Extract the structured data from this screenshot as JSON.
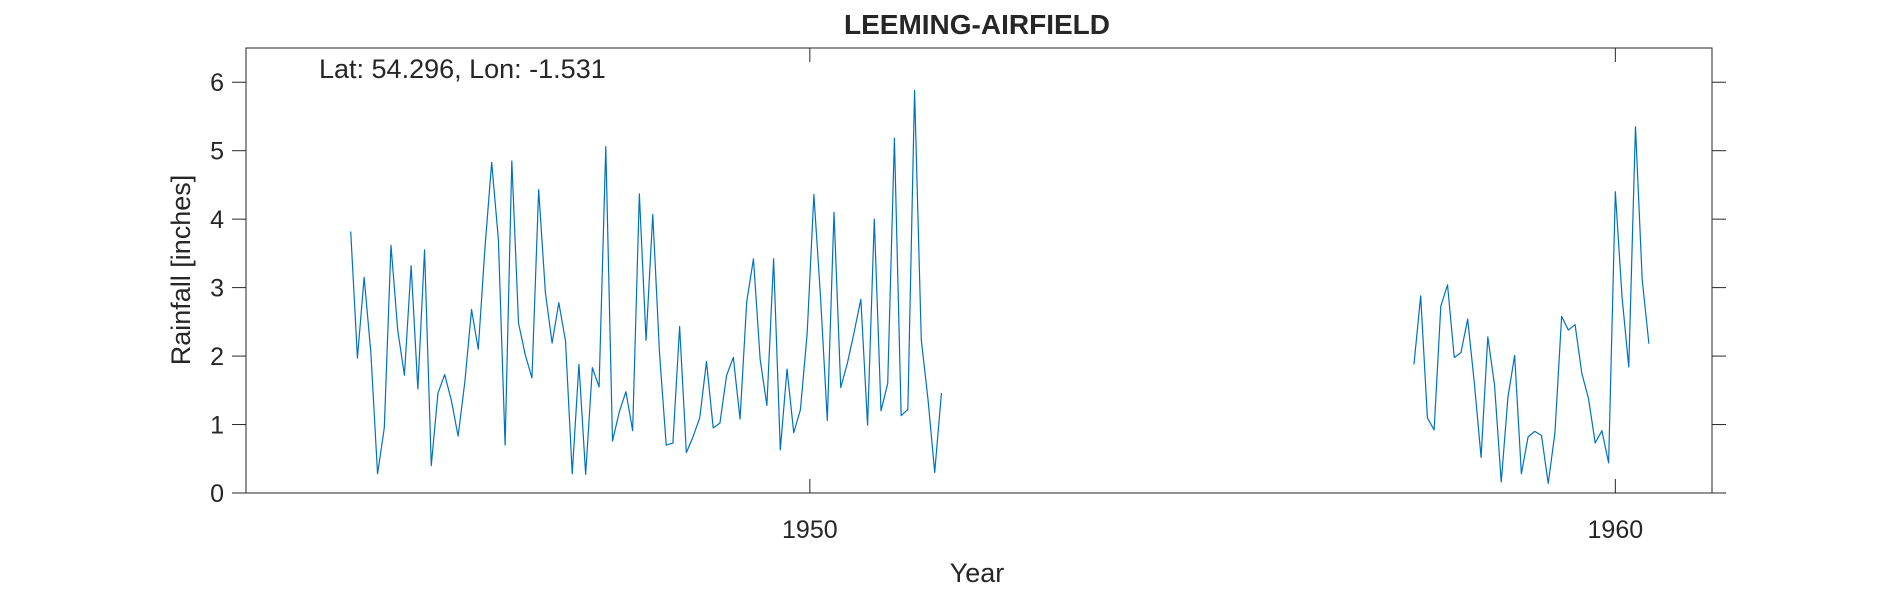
{
  "chart_data": {
    "type": "line",
    "title": "LEEMING-AIRFIELD",
    "xlabel": "Year",
    "ylabel": "Rainfall [inches]",
    "annotation": "Lat: 54.296, Lon: -1.531",
    "xlim": [
      1943.0,
      1961.2
    ],
    "ylim": [
      0,
      6.5
    ],
    "xticks": [
      1950,
      1960
    ],
    "yticks": [
      0,
      1,
      2,
      3,
      4,
      5,
      6
    ],
    "grid": false,
    "legend": "none",
    "line_color": "#0072BD",
    "series": [
      {
        "segments": [
          {
            "start_year": 1944.3,
            "values": [
              3.82,
              1.97,
              3.15,
              2.05,
              0.28,
              0.95,
              3.62,
              2.38,
              1.72,
              3.32,
              1.52,
              3.55,
              0.4,
              1.46,
              1.73,
              1.35,
              0.83,
              1.62,
              2.68,
              2.1,
              3.58,
              4.83,
              3.7,
              0.7,
              4.85,
              2.48,
              2.02,
              1.68,
              4.43,
              2.93,
              2.19,
              2.78,
              2.22,
              0.28,
              1.88,
              0.27,
              1.83,
              1.55,
              5.06,
              0.76,
              1.18,
              1.48,
              0.91,
              4.37,
              2.23,
              4.07,
              2.05,
              0.7,
              0.73,
              2.43,
              0.59,
              0.82,
              1.1,
              1.92,
              0.95,
              1.02,
              1.72,
              1.98,
              1.08,
              2.8,
              3.42,
              1.95,
              1.28,
              3.42,
              0.63,
              1.81,
              0.88,
              1.22,
              2.33,
              4.36,
              2.85,
              1.06,
              4.1,
              1.54,
              1.9,
              2.35,
              2.83,
              0.99,
              4.0,
              1.2,
              1.6,
              5.18,
              1.13,
              1.22,
              5.88,
              2.24,
              1.37,
              0.3,
              1.46
            ]
          },
          {
            "start_year": 1957.5,
            "values": [
              1.88,
              2.88,
              1.1,
              0.92,
              2.73,
              3.04,
              1.98,
              2.05,
              2.54,
              1.6,
              0.52,
              2.28,
              1.58,
              0.16,
              1.4,
              2.01,
              0.28,
              0.82,
              0.9,
              0.84,
              0.14,
              0.88,
              2.58,
              2.38,
              2.46,
              1.75,
              1.38,
              0.73,
              0.91,
              0.44,
              4.4,
              2.86,
              1.84,
              5.35,
              3.12,
              2.18
            ]
          }
        ]
      }
    ]
  }
}
